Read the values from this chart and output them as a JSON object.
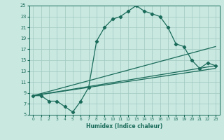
{
  "xlabel": "Humidex (Indice chaleur)",
  "ylabel": "",
  "xlim": [
    -0.5,
    23.5
  ],
  "ylim": [
    5,
    25
  ],
  "yticks": [
    5,
    7,
    9,
    11,
    13,
    15,
    17,
    19,
    21,
    23,
    25
  ],
  "xticks": [
    0,
    1,
    2,
    3,
    4,
    5,
    6,
    7,
    8,
    9,
    10,
    11,
    12,
    13,
    14,
    15,
    16,
    17,
    18,
    19,
    20,
    21,
    22,
    23
  ],
  "bg_color": "#c8e8e0",
  "grid_color": "#a0c8c0",
  "line_color": "#1a6b5a",
  "line1_x": [
    0,
    1,
    2,
    3,
    4,
    5,
    6,
    7,
    8,
    9,
    10,
    11,
    12,
    13,
    14,
    15,
    16,
    17,
    18,
    19,
    20,
    21,
    22,
    23
  ],
  "line1_y": [
    8.5,
    8.5,
    7.5,
    7.5,
    6.5,
    5.5,
    7.5,
    10.0,
    18.5,
    21.0,
    22.5,
    23.0,
    24.0,
    25.0,
    24.0,
    23.5,
    23.0,
    21.0,
    18.0,
    17.5,
    15.0,
    13.5,
    14.5,
    14.0
  ],
  "line2_x": [
    0,
    23
  ],
  "line2_y": [
    8.5,
    17.5
  ],
  "line3_x": [
    0,
    23
  ],
  "line3_y": [
    8.5,
    14.0
  ],
  "line4_x": [
    0,
    23
  ],
  "line4_y": [
    8.5,
    13.5
  ]
}
